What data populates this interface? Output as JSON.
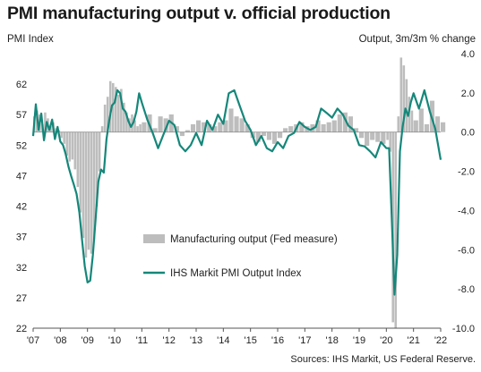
{
  "chart_data": {
    "type": "bar+line",
    "title": "PMI manufacturing output v. official production",
    "left_axis_label": "PMI Index",
    "right_axis_label": "Output, 3m/3m % change",
    "left_ticks": [
      "22",
      "27",
      "32",
      "37",
      "42",
      "47",
      "52",
      "57",
      "62"
    ],
    "left_ylim": [
      22,
      67
    ],
    "right_ticks": [
      "-10.0",
      "-8.0",
      "-6.0",
      "-4.0",
      "-2.0",
      "0.0",
      "2.0",
      "4.0"
    ],
    "right_ylim": [
      -10,
      4
    ],
    "x_ticks": [
      "'07",
      "'08",
      "'09",
      "'10",
      "'11",
      "'12",
      "'13",
      "'14",
      "'15",
      "'16",
      "'17",
      "'18",
      "'19",
      "'20",
      "'21",
      "'22"
    ],
    "x_start_year": 2007,
    "x_end_year": 2022,
    "series": [
      {
        "name": "Manufacturing output (Fed measure)",
        "kind": "bar",
        "axis": "right",
        "color": "#bdbdbd",
        "t": [
          2007.0,
          2007.1,
          2007.2,
          2007.3,
          2007.4,
          2007.5,
          2007.6,
          2007.7,
          2007.8,
          2007.9,
          2008.0,
          2008.1,
          2008.2,
          2008.3,
          2008.4,
          2008.5,
          2008.6,
          2008.7,
          2008.8,
          2008.9,
          2009.0,
          2009.1,
          2009.2,
          2009.3,
          2009.4,
          2009.5,
          2009.6,
          2009.7,
          2009.8,
          2009.9,
          2010.0,
          2010.1,
          2010.2,
          2010.3,
          2010.4,
          2010.5,
          2010.6,
          2010.7,
          2010.8,
          2010.9,
          2011.0,
          2011.2,
          2011.4,
          2011.6,
          2011.8,
          2012.0,
          2012.2,
          2012.4,
          2012.6,
          2012.8,
          2013.0,
          2013.2,
          2013.4,
          2013.6,
          2013.8,
          2014.0,
          2014.2,
          2014.4,
          2014.6,
          2014.8,
          2015.0,
          2015.2,
          2015.4,
          2015.6,
          2015.8,
          2016.0,
          2016.2,
          2016.4,
          2016.6,
          2016.8,
          2017.0,
          2017.2,
          2017.4,
          2017.6,
          2017.8,
          2018.0,
          2018.2,
          2018.4,
          2018.6,
          2018.8,
          2019.0,
          2019.2,
          2019.4,
          2019.6,
          2019.8,
          2020.0,
          2020.1,
          2020.2,
          2020.3,
          2020.4,
          2020.5,
          2020.6,
          2020.7,
          2020.8,
          2020.9,
          2021.0,
          2021.2,
          2021.4,
          2021.6,
          2021.8,
          2022.0
        ],
        "values": [
          0.8,
          1.1,
          0.9,
          0.4,
          1.0,
          0.7,
          0.3,
          0.5,
          0.2,
          0.1,
          -0.3,
          -0.6,
          -1.2,
          -1.5,
          -1.4,
          -1.9,
          -2.8,
          -4.1,
          -5.4,
          -6.4,
          -6.0,
          -6.2,
          -5.5,
          -3.8,
          -2.0,
          0.3,
          1.4,
          1.8,
          2.6,
          2.5,
          2.3,
          1.9,
          2.2,
          1.5,
          1.0,
          0.7,
          0.9,
          0.6,
          0.3,
          0.4,
          0.5,
          0.9,
          0.2,
          0.8,
          0.7,
          0.9,
          0.3,
          -0.2,
          0.1,
          0.4,
          0.6,
          0.5,
          0.4,
          0.3,
          0.5,
          0.6,
          1.2,
          0.8,
          0.7,
          0.4,
          -0.3,
          -0.5,
          -0.2,
          -0.4,
          -0.6,
          -0.3,
          0.2,
          0.3,
          0.4,
          0.5,
          0.3,
          0.4,
          0.6,
          0.4,
          0.5,
          0.6,
          0.9,
          1.0,
          0.8,
          0.2,
          -0.3,
          -0.7,
          -0.4,
          -0.5,
          -0.6,
          -0.4,
          -1.0,
          -9.7,
          -10.0,
          0.8,
          3.8,
          3.4,
          2.7,
          1.8,
          1.1,
          0.6,
          1.2,
          0.4,
          1.6,
          0.8,
          0.5
        ]
      },
      {
        "name": "IHS Markit PMI Output Index",
        "kind": "line",
        "axis": "left",
        "color": "#15877a",
        "t": [
          2007.0,
          2007.1,
          2007.2,
          2007.3,
          2007.4,
          2007.5,
          2007.6,
          2007.7,
          2007.8,
          2007.9,
          2008.0,
          2008.1,
          2008.2,
          2008.3,
          2008.4,
          2008.5,
          2008.6,
          2008.7,
          2008.8,
          2008.9,
          2009.0,
          2009.1,
          2009.2,
          2009.3,
          2009.4,
          2009.5,
          2009.6,
          2009.7,
          2009.8,
          2009.9,
          2010.0,
          2010.1,
          2010.2,
          2010.3,
          2010.4,
          2010.5,
          2010.6,
          2010.7,
          2010.8,
          2010.9,
          2011.0,
          2011.2,
          2011.4,
          2011.6,
          2011.8,
          2012.0,
          2012.2,
          2012.4,
          2012.6,
          2012.8,
          2013.0,
          2013.2,
          2013.4,
          2013.6,
          2013.8,
          2014.0,
          2014.2,
          2014.4,
          2014.6,
          2014.8,
          2015.0,
          2015.2,
          2015.4,
          2015.6,
          2015.8,
          2016.0,
          2016.2,
          2016.4,
          2016.6,
          2016.8,
          2017.0,
          2017.2,
          2017.4,
          2017.6,
          2017.8,
          2018.0,
          2018.2,
          2018.4,
          2018.6,
          2018.8,
          2019.0,
          2019.2,
          2019.4,
          2019.6,
          2019.8,
          2020.0,
          2020.1,
          2020.2,
          2020.3,
          2020.4,
          2020.5,
          2020.6,
          2020.7,
          2020.8,
          2020.9,
          2021.0,
          2021.2,
          2021.4,
          2021.6,
          2021.8,
          2022.0
        ],
        "values": [
          53.5,
          58.7,
          54.5,
          57.2,
          52.8,
          55.8,
          54.5,
          56.2,
          53.0,
          55.0,
          52.6,
          52.0,
          50.5,
          48.5,
          46.9,
          45.5,
          44.0,
          41.0,
          36.5,
          32.2,
          29.5,
          29.8,
          34.0,
          40.0,
          46.0,
          48.0,
          47.5,
          53.0,
          56.0,
          58.5,
          59.0,
          61.0,
          60.5,
          58.0,
          57.5,
          56.0,
          55.0,
          55.8,
          57.5,
          60.5,
          59.0,
          56.2,
          54.0,
          51.5,
          53.8,
          56.0,
          55.3,
          52.0,
          51.0,
          52.0,
          54.0,
          52.0,
          56.0,
          54.5,
          57.0,
          55.5,
          60.5,
          61.0,
          58.5,
          56.0,
          54.5,
          52.0,
          53.5,
          51.5,
          51.0,
          52.5,
          51.5,
          53.5,
          54.0,
          55.8,
          55.0,
          54.5,
          55.0,
          58.0,
          57.3,
          56.5,
          58.0,
          57.0,
          55.2,
          54.5,
          52.0,
          51.8,
          51.0,
          50.0,
          52.5,
          51.5,
          51.5,
          40.0,
          27.5,
          34.0,
          51.0,
          55.0,
          58.0,
          56.8,
          59.0,
          60.5,
          58.0,
          61.0,
          57.5,
          54.7,
          49.6
        ]
      }
    ],
    "legend_placement": "center-left",
    "grid": false,
    "source": "Sources: IHS Markit, US Federal Reserve."
  }
}
